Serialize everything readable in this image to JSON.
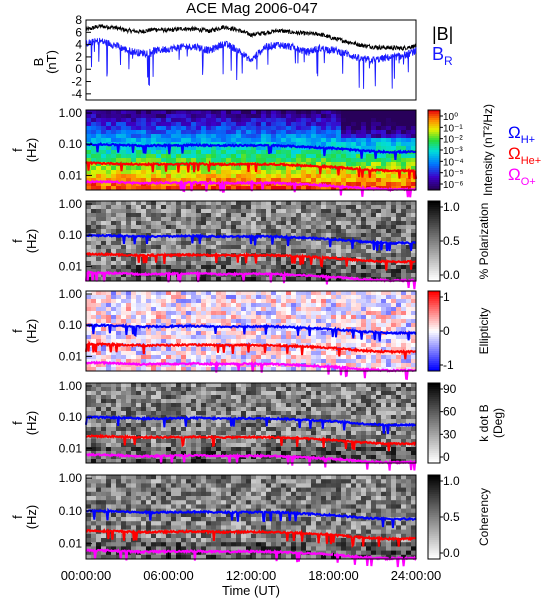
{
  "figure": {
    "title": "ACE Mag 2006-047",
    "xlabel": "Time (UT)",
    "xticks": [
      "00:00:00",
      "06:00:00",
      "12:00:00",
      "18:00:00",
      "24:00:00"
    ]
  },
  "legend": {
    "bmag": "|B|",
    "br": "B",
    "br_sub": "R",
    "omega": "Ω",
    "h_sub": "H+",
    "he_sub": "He+",
    "o_sub": "O+"
  },
  "colors": {
    "bmag": "#000000",
    "br": "#1a1aff",
    "h": "#0000ff",
    "he": "#ff0000",
    "o": "#ff00ff"
  },
  "chart_data": [
    {
      "type": "line",
      "panel": "B",
      "ylabel": "B",
      "yunit": "(nT)",
      "xlim_hours": [
        0,
        24
      ],
      "ylim": [
        -5,
        8
      ],
      "yticks": [
        "8",
        "6",
        "4",
        "2",
        "0",
        "-2",
        "-4"
      ],
      "x_hours": [
        0,
        1,
        2,
        3,
        4,
        5,
        6,
        7,
        8,
        9,
        10,
        11,
        12,
        13,
        14,
        15,
        16,
        17,
        18,
        19,
        20,
        21,
        22,
        23,
        24
      ],
      "series": [
        {
          "name": "|B|",
          "values": [
            6.4,
            7.0,
            6.8,
            6.3,
            6.1,
            6.5,
            6.3,
            6.6,
            6.5,
            6.2,
            6.9,
            6.4,
            5.6,
            5.9,
            6.3,
            6.0,
            5.8,
            5.7,
            5.0,
            4.5,
            3.9,
            3.6,
            3.5,
            3.4,
            3.8
          ]
        },
        {
          "name": "B",
          "values": [
            4.2,
            4.6,
            4.0,
            3.1,
            2.6,
            3.0,
            3.3,
            3.6,
            3.7,
            3.0,
            4.2,
            3.2,
            1.4,
            3.6,
            4.0,
            3.6,
            2.8,
            3.4,
            3.1,
            2.5,
            1.6,
            1.5,
            1.9,
            2.1,
            3.0
          ]
        }
      ]
    },
    {
      "type": "heatmap",
      "panel": "Intensity",
      "ylabel": "f",
      "yunit": "(Hz)",
      "yticks": [
        "1.00",
        "0.10",
        "0.01"
      ],
      "colorbar_label": "Intensity (nT²/Hz)",
      "colorbar_ticks": [
        "10⁰",
        "10⁻¹",
        "10⁻²",
        "10⁻³",
        "10⁻⁴",
        "10⁻⁵",
        "10⁻⁶"
      ]
    },
    {
      "type": "heatmap",
      "panel": "% Polarization",
      "ylabel": "f",
      "yunit": "(Hz)",
      "yticks": [
        "1.00",
        "0.10",
        "0.01"
      ],
      "colorbar_label": "% Polarization",
      "colorbar_ticks": [
        "1.0",
        "0.5",
        "0.0"
      ]
    },
    {
      "type": "heatmap",
      "panel": "Ellipticity",
      "ylabel": "f",
      "yunit": "(Hz)",
      "yticks": [
        "1.00",
        "0.10",
        "0.01"
      ],
      "colorbar_label": "Ellipticity",
      "colorbar_ticks": [
        "1",
        "0",
        "-1"
      ]
    },
    {
      "type": "heatmap",
      "panel": "k dot B",
      "ylabel": "f",
      "yunit": "(Hz)",
      "yticks": [
        "1.00",
        "0.10",
        "0.01"
      ],
      "colorbar_label": "k dot B",
      "colorbar_unit": "(Deg)",
      "colorbar_ticks": [
        "90",
        "60",
        "30",
        "0"
      ]
    },
    {
      "type": "heatmap",
      "panel": "Coherency",
      "ylabel": "f",
      "yunit": "(Hz)",
      "yticks": [
        "1.00",
        "0.10",
        "0.01"
      ],
      "colorbar_label": "Coherency",
      "colorbar_ticks": [
        "1.0",
        "0.5",
        "0.0"
      ]
    },
    {
      "type": "line",
      "panel": "gyrofrequency overlays (Hz)",
      "x_hours": [
        0,
        2,
        4,
        6,
        8,
        10,
        12,
        14,
        16,
        18,
        20,
        22,
        24
      ],
      "series": [
        {
          "name": "H+",
          "values": [
            0.1,
            0.097,
            0.09,
            0.092,
            0.094,
            0.09,
            0.092,
            0.09,
            0.082,
            0.074,
            0.062,
            0.056,
            0.057
          ]
        },
        {
          "name": "He+",
          "values": [
            0.025,
            0.024,
            0.0225,
            0.023,
            0.0235,
            0.0225,
            0.023,
            0.0225,
            0.0205,
            0.0185,
            0.0155,
            0.014,
            0.0143
          ]
        },
        {
          "name": "O+",
          "values": [
            0.0063,
            0.0061,
            0.0056,
            0.0058,
            0.0059,
            0.0056,
            0.0058,
            0.0056,
            0.0051,
            0.0046,
            0.0039,
            0.0035,
            0.0036
          ]
        }
      ]
    }
  ]
}
